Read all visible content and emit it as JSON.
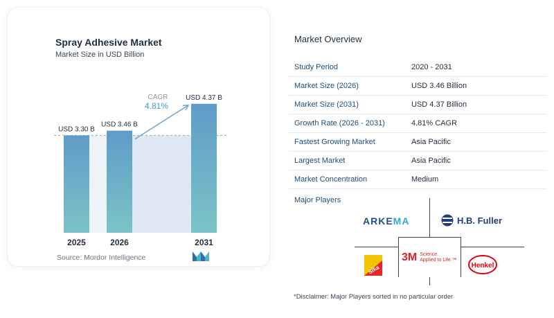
{
  "chart_data": {
    "type": "bar",
    "title": "Spray Adhesive Market",
    "subtitle": "Market Size in USD Billion",
    "categories": [
      "2025",
      "2026",
      "2031"
    ],
    "values": [
      3.3,
      3.46,
      4.37
    ],
    "value_labels": [
      "USD 3.30 B",
      "USD 3.46 B",
      "USD 4.37 B"
    ],
    "cagr_label": "CAGR",
    "cagr_value": "4.81%",
    "colors": {
      "bar_top": "#5f9cc8",
      "bar_bottom": "#7cc3c7",
      "band": "#dde8f3",
      "arrow": "#6fa5cf",
      "cagr": "#3a9bd5"
    }
  },
  "source": "Source:  Mordor Intelligence",
  "overview": {
    "title": "Market Overview",
    "rows": [
      {
        "key": "Study Period",
        "value": "2020 - 2031"
      },
      {
        "key": "Market Size (2026)",
        "value": "USD 3.46 Billion"
      },
      {
        "key": "Market Size (2031)",
        "value": "USD 4.37 Billion"
      },
      {
        "key": "Growth Rate (2026 - 2031)",
        "value": "4.81% CAGR"
      },
      {
        "key": "Fastest Growing Market",
        "value": "Asia Pacific"
      },
      {
        "key": "Largest Market",
        "value": "Asia Pacific"
      },
      {
        "key": "Market Concentration",
        "value": "Medium"
      }
    ]
  },
  "players": {
    "title": "Major Players",
    "arkema_part1": "ARKE",
    "arkema_part2": "MA",
    "hbfuller": "H.B. Fuller",
    "threem_mark": "3M",
    "threem_tag1": "Science.",
    "threem_tag2": "Applied to Life.™",
    "henkel": "Henkel",
    "sika": "Sika"
  },
  "disclaimer": "*Disclaimer: Major Players sorted in no particular order"
}
